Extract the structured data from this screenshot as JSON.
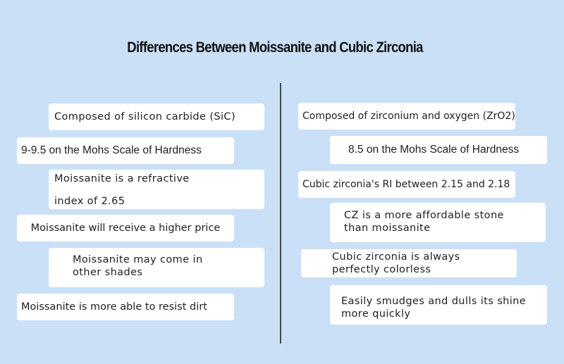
{
  "title": "Differences Between Moissanite and Cubic Zirconia",
  "moissanite": {
    "composition": "Composed of silicon carbide (SiC)",
    "hardness": "9-9.5 on the Mohs Scale of Hardness",
    "refractive_line1": "Moissanite is a refractive",
    "refractive_line2": "index of 2.65",
    "price": "Moissanite will receive a higher price",
    "shades_line1": "Moissanite may come in",
    "shades_line2": "other shades",
    "dirt": "Moissanite is more able to resist dirt"
  },
  "cubic_zirconia": {
    "composition": "Composed of zirconium and oxygen (ZrO2)",
    "hardness": "8.5 on the Mohs Scale of Hardness",
    "refractive": "Cubic zirconia's RI between 2.15 and 2.18",
    "price_line1": "CZ is a more affordable stone",
    "price_line2": "than moissanite",
    "color_line1": "Cubic zirconia is always",
    "color_line2": "perfectly colorless",
    "shine_line1": "Easily smudges and dulls its shine",
    "shine_line2": "more quickly"
  }
}
